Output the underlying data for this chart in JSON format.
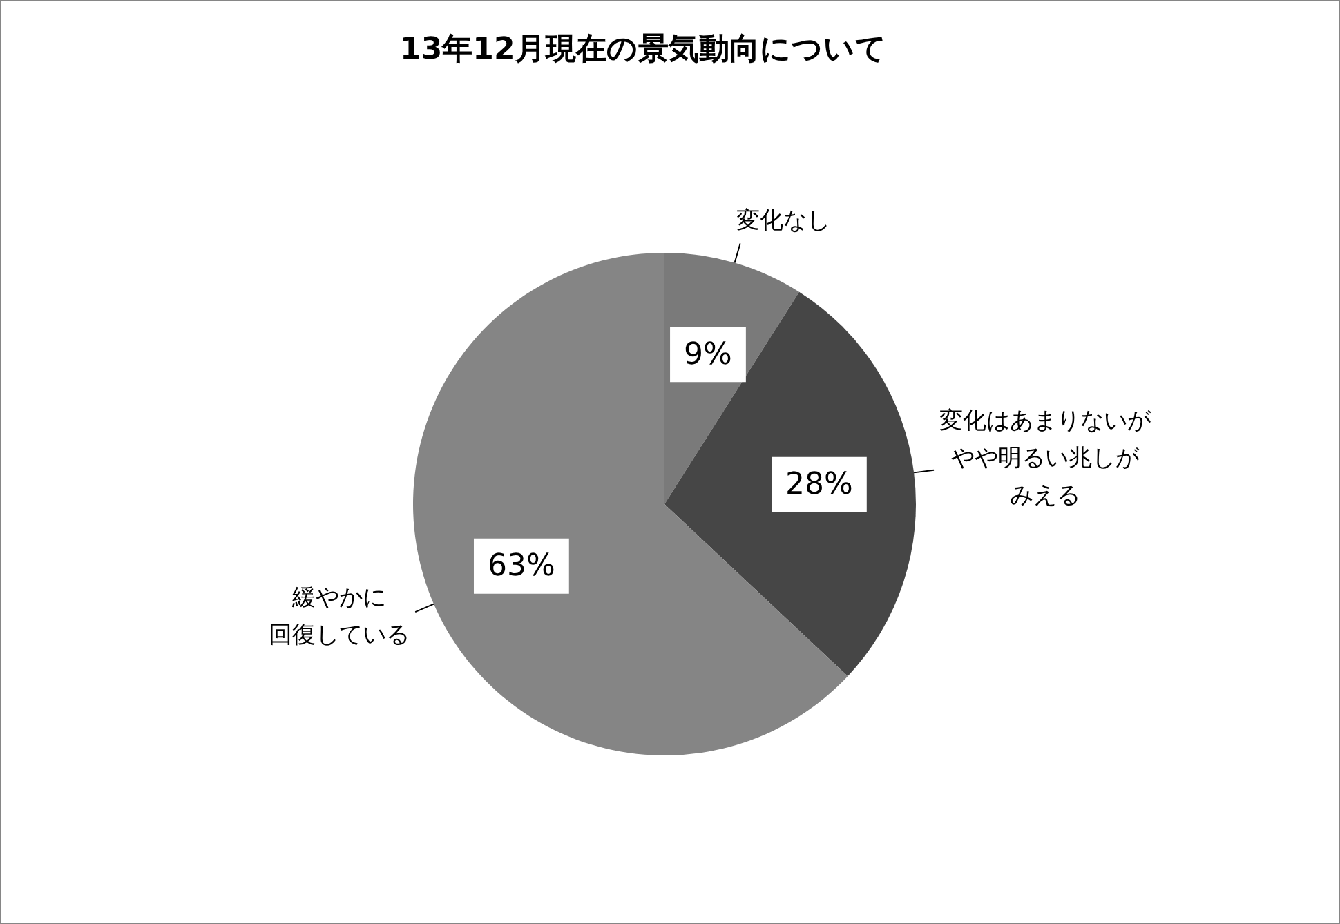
{
  "chart_data": {
    "type": "pie",
    "title": "13年12月現在の景気動向について",
    "categories": [
      "変化なし",
      "変化はあまりないがやや明るい兆しがみえる",
      "緩やかに回復している"
    ],
    "values": [
      9,
      28,
      63
    ],
    "colors": [
      "#7a7a7a",
      "#464646",
      "#858585"
    ],
    "value_labels": [
      "9%",
      "28%",
      "63%"
    ],
    "legend": false
  }
}
